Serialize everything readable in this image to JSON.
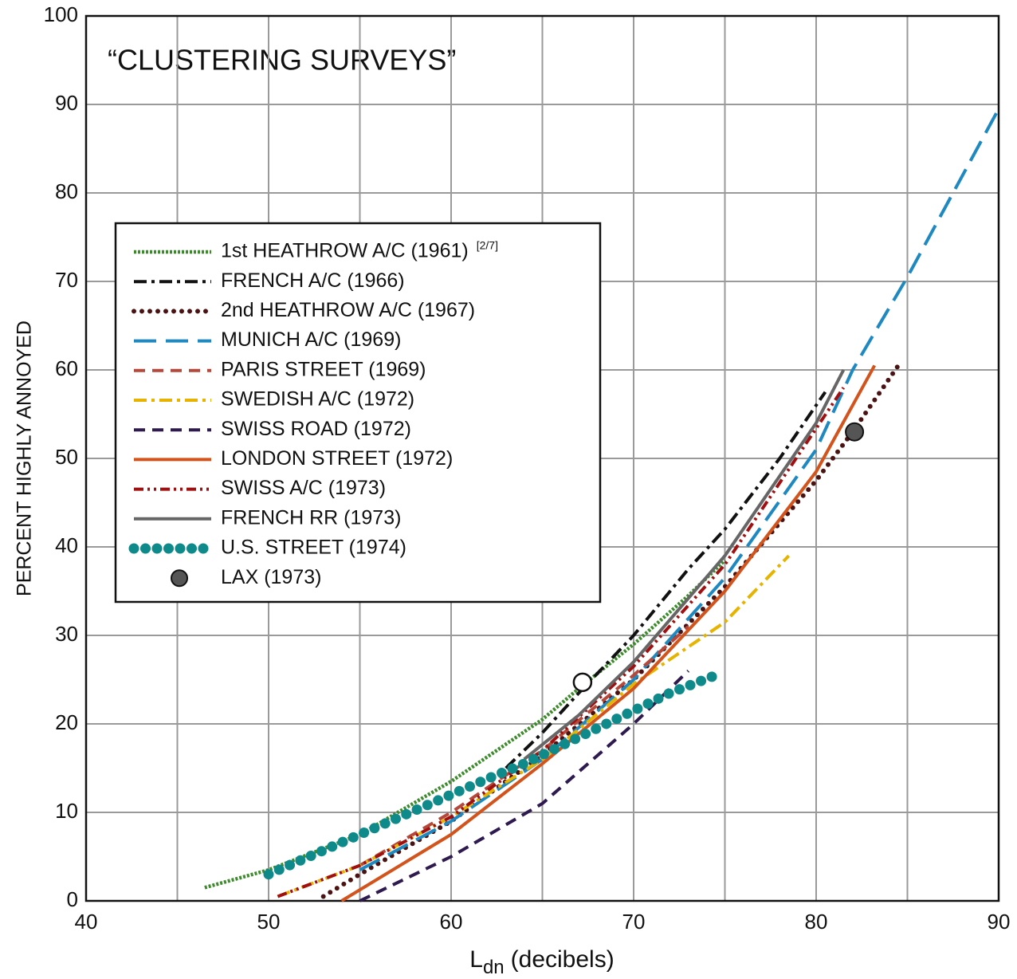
{
  "chart_data": {
    "type": "line",
    "title": "“CLUSTERING SURVEYS”",
    "x_label_parts": [
      "L",
      "dn",
      "(decibels)"
    ],
    "y_label": "PERCENT HIGHLY ANNOYED",
    "xlim": [
      40,
      90
    ],
    "xticks": [
      40,
      50,
      60,
      70,
      80,
      90
    ],
    "x_minor_ticks": [
      45,
      55,
      65,
      75,
      85
    ],
    "ylim": [
      0,
      100
    ],
    "yticks": [
      0,
      10,
      20,
      30,
      40,
      50,
      60,
      70,
      80,
      90,
      100
    ],
    "grid": true,
    "legend": "left",
    "legend_note": "[2/7]",
    "series": [
      {
        "name": "1st HEATHROW A/C (1961)",
        "color": "#3d8b2c",
        "style": "wavy",
        "x": [
          46.5,
          50,
          55,
          60,
          65,
          67,
          70,
          73,
          75
        ],
        "values": [
          1.5,
          3.5,
          7.5,
          13.5,
          20.5,
          24,
          29,
          34.5,
          38.5
        ]
      },
      {
        "name": "FRENCH A/C (1966)",
        "color": "#111111",
        "style": "dashdot",
        "x": [
          63,
          65,
          67,
          70,
          73,
          75,
          78,
          80.5
        ],
        "values": [
          15,
          19,
          23.5,
          30,
          37.5,
          42,
          50,
          57.5
        ]
      },
      {
        "name": "2nd HEATHROW A/C (1967)",
        "color": "#4a1212",
        "style": "dotted",
        "x": [
          53,
          55,
          60,
          65,
          70,
          75,
          80,
          82,
          84.5
        ],
        "values": [
          0.5,
          3,
          9,
          16.5,
          25,
          35.5,
          47.5,
          53,
          60.5
        ]
      },
      {
        "name": "MUNICH A/C (1969)",
        "color": "#1e88c0",
        "style": "longdash",
        "x": [
          55,
          60,
          65,
          70,
          75,
          80,
          82,
          85,
          90
        ],
        "values": [
          3.5,
          9,
          16,
          25,
          36.5,
          51,
          60,
          70.5,
          89.5
        ]
      },
      {
        "name": "PARIS STREET (1969)",
        "color": "#b5483a",
        "style": "dashed",
        "x": [
          55,
          60,
          65,
          70,
          73
        ],
        "values": [
          4,
          10,
          17,
          25.5,
          31
        ]
      },
      {
        "name": "SWEDISH A/C (1972)",
        "color": "#e6b400",
        "style": "dashdot",
        "x": [
          50.5,
          55,
          60,
          65,
          70,
          75,
          78.5
        ],
        "values": [
          0.5,
          4,
          9.5,
          16,
          24.5,
          31.5,
          39
        ]
      },
      {
        "name": "SWISS ROAD (1972)",
        "color": "#2e1a4f",
        "style": "dashed",
        "x": [
          55,
          60,
          65,
          70,
          73
        ],
        "values": [
          0,
          5,
          11,
          20,
          26
        ]
      },
      {
        "name": "LONDON STREET (1972)",
        "color": "#d2541c",
        "style": "solid",
        "x": [
          54,
          60,
          65,
          70,
          75,
          80,
          83.2
        ],
        "values": [
          0,
          7.5,
          15.5,
          24,
          35,
          48.5,
          60.5
        ]
      },
      {
        "name": "SWISS A/C (1973)",
        "color": "#a01010",
        "style": "dashdotdot",
        "x": [
          50.5,
          55,
          60,
          65,
          70,
          75,
          81.5
        ],
        "values": [
          0.5,
          4,
          9.5,
          17,
          26.5,
          38,
          58
        ]
      },
      {
        "name": "FRENCH RR (1973)",
        "color": "#666666",
        "style": "solid",
        "x": [
          64,
          67,
          70,
          75,
          80,
          81.5
        ],
        "values": [
          16,
          21,
          27,
          39,
          54,
          60
        ]
      },
      {
        "name": "U.S. STREET (1974)",
        "color": "#0e8a8a",
        "style": "beads",
        "x": [
          50,
          52,
          55,
          58,
          60,
          62,
          64,
          67,
          70,
          72,
          74.5
        ],
        "values": [
          3,
          4.8,
          7.5,
          10.2,
          12,
          13.8,
          15.5,
          18.5,
          21.5,
          23.5,
          25.5
        ]
      },
      {
        "name": "LAX (1973)",
        "color": "#555555",
        "style": "marker",
        "x": [
          82.1
        ],
        "values": [
          53
        ]
      }
    ],
    "extra_points": [
      {
        "x": 67.2,
        "y": 24.7
      }
    ]
  }
}
